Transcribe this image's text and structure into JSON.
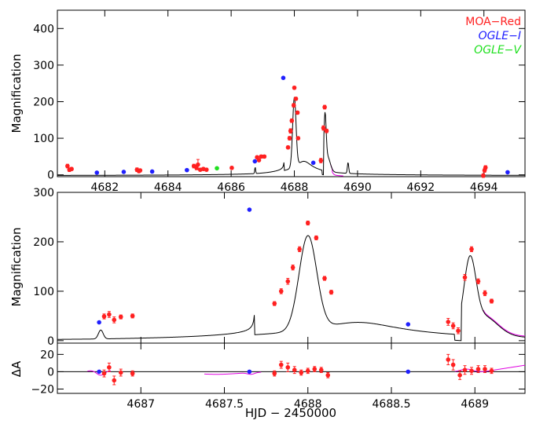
{
  "chart_data": [
    {
      "type": "scatter",
      "panel": "top",
      "ylabel": "Magnification",
      "xlim": [
        4680.5,
        4695.3
      ],
      "ylim": [
        -5,
        450
      ],
      "x_ticks": [
        4682,
        4684,
        4686,
        4688,
        4690,
        4692,
        4694
      ],
      "y_ticks": [
        0,
        100,
        200,
        300,
        400
      ],
      "legend": {
        "placement": "top-right",
        "entries": [
          {
            "text": "MOA−Red",
            "color": "#ff2020"
          },
          {
            "text": "OGLE−I",
            "color": "#2020ff"
          },
          {
            "text": "OGLE−V",
            "color": "#20e020"
          }
        ]
      },
      "series": [
        {
          "name": "MOA−Red",
          "color": "#ff2020",
          "points": [
            [
              4680.82,
              24,
              5
            ],
            [
              4680.88,
              14,
              5
            ],
            [
              4680.95,
              16,
              4
            ],
            [
              4683.02,
              14,
              5
            ],
            [
              4683.08,
              10,
              4
            ],
            [
              4683.12,
              12,
              4
            ],
            [
              4684.82,
              24,
              5
            ],
            [
              4684.9,
              20,
              6
            ],
            [
              4684.95,
              28,
              14
            ],
            [
              4685.02,
              14,
              4
            ],
            [
              4685.12,
              16,
              4
            ],
            [
              4685.22,
              14,
              4
            ],
            [
              4686.02,
              19,
              4
            ],
            [
              4686.82,
              48,
              4
            ],
            [
              4686.88,
              40,
              3
            ],
            [
              4686.95,
              50,
              4
            ],
            [
              4687.05,
              50,
              4
            ],
            [
              4687.8,
              75,
              4
            ],
            [
              4687.85,
              100,
              5
            ],
            [
              4687.88,
              120,
              6
            ],
            [
              4687.92,
              148,
              5
            ],
            [
              4687.98,
              190,
              5
            ],
            [
              4688.0,
              238,
              4
            ],
            [
              4688.05,
              208,
              4
            ],
            [
              4688.1,
              170,
              4
            ],
            [
              4688.12,
              100,
              4
            ],
            [
              4688.84,
              39,
              6
            ],
            [
              4688.92,
              128,
              6
            ],
            [
              4688.96,
              185,
              5
            ],
            [
              4689.02,
              120,
              5
            ],
            [
              4693.98,
              -2,
              5
            ],
            [
              4694.02,
              12,
              5
            ],
            [
              4694.05,
              20,
              5
            ]
          ]
        },
        {
          "name": "OGLE−I",
          "color": "#2020ff",
          "points": [
            [
              4681.75,
              6
            ],
            [
              4682.6,
              8
            ],
            [
              4683.5,
              9
            ],
            [
              4684.6,
              13
            ],
            [
              4686.75,
              37
            ],
            [
              4687.65,
              265
            ],
            [
              4688.6,
              33
            ],
            [
              4694.75,
              7
            ]
          ]
        },
        {
          "name": "OGLE−V",
          "color": "#20e020",
          "points": [
            [
              4685.55,
              18
            ]
          ]
        }
      ]
    },
    {
      "type": "scatter",
      "panel": "middle",
      "ylabel": "Magnification",
      "xlim": [
        4686.5,
        4689.3
      ],
      "ylim": [
        -5,
        300
      ],
      "y_ticks": [
        0,
        100,
        200,
        300
      ],
      "series": [
        {
          "name": "MOA−Red",
          "color": "#ff2020",
          "points": [
            [
              4686.78,
              49,
              5
            ],
            [
              4686.81,
              53,
              6
            ],
            [
              4686.84,
              42,
              6
            ],
            [
              4686.88,
              48,
              4
            ],
            [
              4686.95,
              50,
              4
            ],
            [
              4687.8,
              75,
              4
            ],
            [
              4687.84,
              100,
              5
            ],
            [
              4687.88,
              120,
              6
            ],
            [
              4687.91,
              148,
              5
            ],
            [
              4687.95,
              185,
              5
            ],
            [
              4688.0,
              238,
              4
            ],
            [
              4688.05,
              208,
              4
            ],
            [
              4688.1,
              126,
              4
            ],
            [
              4688.14,
              98,
              4
            ],
            [
              4688.84,
              38,
              7
            ],
            [
              4688.87,
              30,
              6
            ],
            [
              4688.9,
              20,
              6
            ],
            [
              4688.94,
              128,
              6
            ],
            [
              4688.98,
              185,
              5
            ],
            [
              4689.02,
              120,
              5
            ],
            [
              4689.06,
              96,
              5
            ],
            [
              4689.1,
              80,
              4
            ]
          ]
        },
        {
          "name": "OGLE−I",
          "color": "#2020ff",
          "points": [
            [
              4686.75,
              37
            ],
            [
              4687.65,
              265
            ],
            [
              4688.6,
              33
            ]
          ]
        }
      ]
    },
    {
      "type": "scatter",
      "panel": "residuals",
      "ylabel": "ΔA",
      "xlabel": "HJD − 2450000",
      "xlim": [
        4686.5,
        4689.3
      ],
      "ylim": [
        -25,
        33
      ],
      "x_ticks": [
        4687,
        4687.5,
        4688,
        4688.5,
        4689
      ],
      "y_ticks": [
        -20,
        0,
        20
      ],
      "series": [
        {
          "name": "MOA−Red",
          "color": "#ff2020",
          "points": [
            [
              4686.78,
              -2,
              4
            ],
            [
              4686.81,
              5,
              5
            ],
            [
              4686.84,
              -10,
              5
            ],
            [
              4686.88,
              -1,
              4
            ],
            [
              4686.95,
              -2,
              3
            ],
            [
              4687.8,
              -2,
              3
            ],
            [
              4687.84,
              8,
              4
            ],
            [
              4687.88,
              5,
              5
            ],
            [
              4687.92,
              2,
              4
            ],
            [
              4687.96,
              -1,
              3
            ],
            [
              4688.0,
              1,
              3
            ],
            [
              4688.04,
              3,
              3
            ],
            [
              4688.08,
              2,
              3
            ],
            [
              4688.12,
              -4,
              3
            ],
            [
              4688.84,
              14,
              6
            ],
            [
              4688.87,
              8,
              6
            ],
            [
              4688.91,
              -4,
              5
            ],
            [
              4688.94,
              2,
              5
            ],
            [
              4688.98,
              1,
              4
            ],
            [
              4689.02,
              3,
              4
            ],
            [
              4689.06,
              3,
              4
            ],
            [
              4689.1,
              1,
              3
            ]
          ]
        },
        {
          "name": "OGLE−I",
          "color": "#2020ff",
          "points": [
            [
              4686.75,
              0
            ],
            [
              4687.65,
              0
            ],
            [
              4688.6,
              0
            ]
          ]
        }
      ]
    }
  ]
}
